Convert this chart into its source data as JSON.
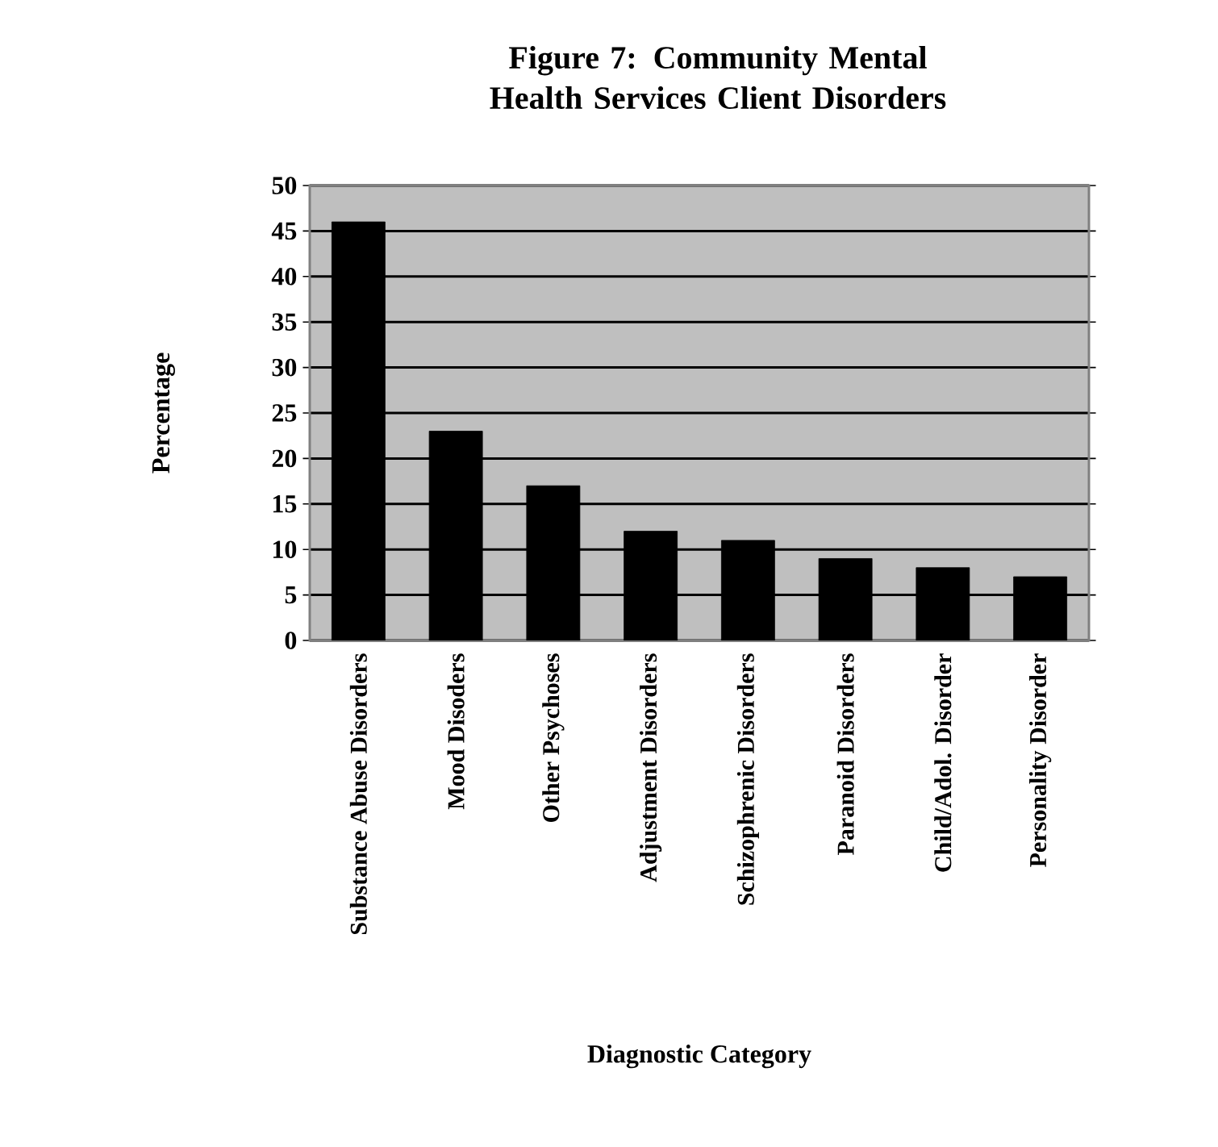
{
  "chart_data": {
    "type": "bar",
    "title": "Figure 7:  Community Mental Health Services Client Disorders",
    "xlabel": "Diagnostic Category",
    "ylabel": "Percentage",
    "categories": [
      "Substance Abuse Disorders",
      "Mood Disoders",
      "Other Psychoses",
      "Adjustment Disorders",
      "Schizophrenic Disorders",
      "Paranoid Disorders",
      "Child/Adol. Disorder",
      "Personality Disorder"
    ],
    "values": [
      46,
      23,
      17,
      12,
      11,
      9,
      8,
      7
    ],
    "color": "#000000",
    "ylim": [
      0,
      50
    ],
    "yticks": [
      0,
      5,
      10,
      15,
      20,
      25,
      30,
      35,
      40,
      45,
      50
    ],
    "grid": "y"
  }
}
